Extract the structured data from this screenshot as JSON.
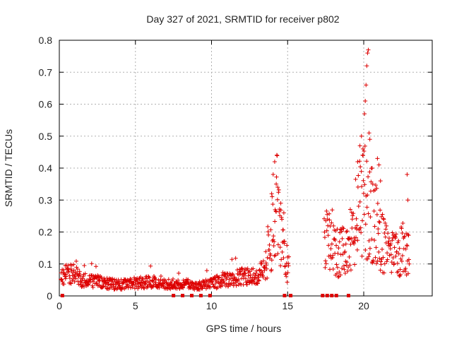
{
  "chart_data": {
    "type": "scatter",
    "title": "Day 327 of 2021, SRMTID for receiver p802",
    "xlabel": "GPS time / hours",
    "ylabel": "SRMTID / TECUs",
    "xlim": [
      0,
      24.5
    ],
    "ylim": [
      0,
      0.8
    ],
    "xticks": [
      0,
      5,
      10,
      15,
      20
    ],
    "yticks": [
      0,
      0.1,
      0.2,
      0.3,
      0.4,
      0.5,
      0.6,
      0.7,
      0.8
    ],
    "grid": true,
    "marker": "plus",
    "marker_color": "#dd0000",
    "profile": [
      [
        0.1,
        0.06
      ],
      [
        0.5,
        0.07
      ],
      [
        1.0,
        0.07
      ],
      [
        1.5,
        0.05
      ],
      [
        2.0,
        0.05
      ],
      [
        3.0,
        0.04
      ],
      [
        4.0,
        0.035
      ],
      [
        5.0,
        0.04
      ],
      [
        6.0,
        0.045
      ],
      [
        7.0,
        0.035
      ],
      [
        8.0,
        0.04
      ],
      [
        9.0,
        0.03
      ],
      [
        10.0,
        0.04
      ],
      [
        11.0,
        0.05
      ],
      [
        12.0,
        0.06
      ],
      [
        13.0,
        0.06
      ],
      [
        13.5,
        0.1
      ],
      [
        14.0,
        0.2
      ],
      [
        14.3,
        0.28
      ],
      [
        14.6,
        0.18
      ],
      [
        15.0,
        0.1
      ],
      [
        17.5,
        0.17
      ],
      [
        18.0,
        0.17
      ],
      [
        18.5,
        0.13
      ],
      [
        19.0,
        0.16
      ],
      [
        19.5,
        0.25
      ],
      [
        20.0,
        0.3
      ],
      [
        20.5,
        0.25
      ],
      [
        21.0,
        0.2
      ],
      [
        21.5,
        0.15
      ],
      [
        22.0,
        0.12
      ],
      [
        22.5,
        0.15
      ],
      [
        23.0,
        0.14
      ]
    ],
    "segments": [
      [
        0.1,
        15.1
      ],
      [
        17.4,
        23.0
      ]
    ],
    "spikes": [
      [
        13.95,
        0.32
      ],
      [
        14.05,
        0.38
      ],
      [
        14.15,
        0.42
      ],
      [
        14.25,
        0.35
      ],
      [
        14.35,
        0.34
      ],
      [
        14.55,
        0.29
      ],
      [
        14.75,
        0.26
      ],
      [
        19.6,
        0.42
      ],
      [
        19.75,
        0.47
      ],
      [
        19.85,
        0.5
      ],
      [
        19.95,
        0.46
      ],
      [
        20.05,
        0.57
      ],
      [
        20.1,
        0.61
      ],
      [
        20.15,
        0.66
      ],
      [
        20.2,
        0.72
      ],
      [
        20.25,
        0.76
      ],
      [
        20.3,
        0.77
      ],
      [
        20.35,
        0.51
      ],
      [
        20.4,
        0.49
      ],
      [
        20.55,
        0.4
      ],
      [
        20.9,
        0.43
      ],
      [
        21.0,
        0.41
      ],
      [
        21.1,
        0.36
      ],
      [
        22.85,
        0.38
      ],
      [
        22.9,
        0.3
      ]
    ],
    "zero_points": [
      0.2,
      7.5,
      8.1,
      8.7,
      9.3,
      9.9,
      14.8,
      15.2,
      17.3,
      17.6,
      17.9,
      18.2,
      19.0
    ]
  }
}
